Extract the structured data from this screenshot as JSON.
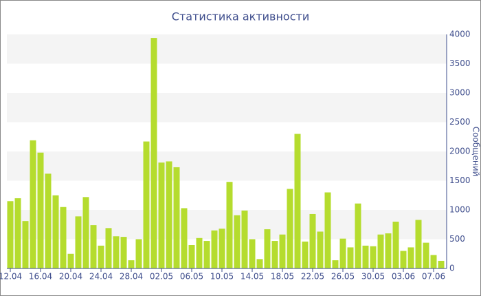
{
  "chart_data": {
    "type": "bar",
    "title": "Статистика активности",
    "y_axis_label": "Сообщений",
    "categories": [
      "12.04",
      null,
      null,
      null,
      "16.04",
      null,
      null,
      null,
      "20.04",
      null,
      null,
      null,
      "24.04",
      null,
      null,
      null,
      "28.04",
      null,
      null,
      null,
      "02.05",
      null,
      null,
      null,
      "06.05",
      null,
      null,
      null,
      "10.05",
      null,
      null,
      null,
      "14.05",
      null,
      null,
      null,
      "18.05",
      null,
      null,
      null,
      "22.05",
      null,
      null,
      null,
      "26.05",
      null,
      null,
      null,
      "30.05",
      null,
      null,
      null,
      "03.06",
      null,
      null,
      null,
      "07.06",
      null
    ],
    "values": [
      1150,
      1200,
      810,
      2190,
      1980,
      1620,
      1250,
      1050,
      250,
      890,
      1220,
      740,
      390,
      690,
      550,
      540,
      140,
      500,
      2170,
      3940,
      1810,
      1830,
      1730,
      1030,
      400,
      520,
      470,
      650,
      680,
      1480,
      910,
      990,
      500,
      160,
      670,
      470,
      580,
      1360,
      2300,
      460,
      930,
      630,
      1300,
      140,
      510,
      360,
      1110,
      390,
      380,
      580,
      600,
      800,
      300,
      360,
      830,
      440,
      230,
      130
    ],
    "color": "#b5dc2e",
    "ylim": [
      0,
      4000
    ],
    "yticks": [
      0,
      500,
      1000,
      1500,
      2000,
      2500,
      3000,
      3500,
      4000
    ],
    "grid": "bands",
    "y_axis_side": "right"
  }
}
